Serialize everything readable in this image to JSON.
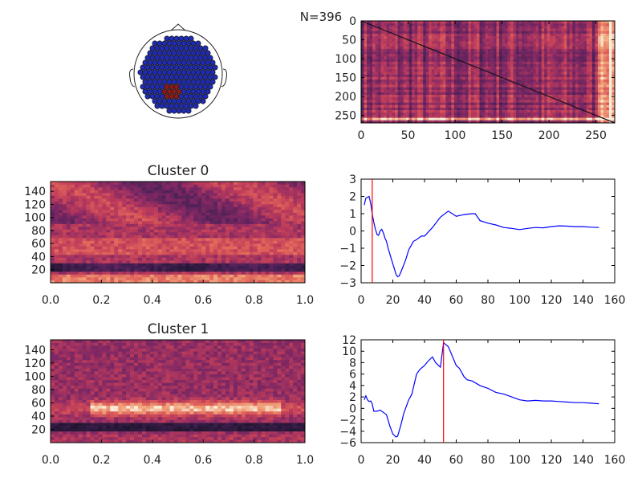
{
  "figure": {
    "count_label": "N=396"
  },
  "chart_data": [
    {
      "type": "heatmap",
      "panel": "topomap",
      "xlabel": "",
      "ylabel": "",
      "colors": {
        "sensor": "#1f2bb0",
        "highlight": "#8b1a1a"
      }
    },
    {
      "type": "heatmap",
      "panel": "similarity-matrix",
      "xlim": [
        0,
        270
      ],
      "ylim": [
        270,
        0
      ],
      "xticks": [
        "0",
        "50",
        "100",
        "150",
        "200",
        "250"
      ],
      "yticks": [
        "0",
        "50",
        "100",
        "150",
        "200",
        "250"
      ],
      "diagonal": true,
      "bright_columns": [
        250,
        268
      ],
      "bright_rows": [
        250,
        262
      ]
    },
    {
      "type": "heatmap",
      "panel": "cluster-0-spectrogram",
      "title": "Cluster 0",
      "xlim": [
        0.0,
        1.0
      ],
      "ylim": [
        0,
        155
      ],
      "xticks": [
        "0.0",
        "0.2",
        "0.4",
        "0.6",
        "0.8",
        "1.0"
      ],
      "yticks": [
        "20",
        "40",
        "60",
        "80",
        "100",
        "120",
        "140"
      ],
      "bands": [
        {
          "center": 5,
          "intensity": 0.85
        },
        {
          "center": 22,
          "intensity": 0.05
        },
        {
          "center": 55,
          "intensity": 0.7
        },
        {
          "center": 110,
          "intensity": 0.55
        }
      ]
    },
    {
      "type": "line",
      "panel": "cluster-0-profile",
      "xlim": [
        0,
        160
      ],
      "ylim": [
        -3,
        3
      ],
      "xticks": [
        "0",
        "20",
        "40",
        "60",
        "80",
        "100",
        "120",
        "140",
        "160"
      ],
      "yticks": [
        "3",
        "2",
        "1",
        "0",
        "−1",
        "−2",
        "−3"
      ],
      "series": [
        {
          "color": "#0000ff",
          "x": [
            2,
            3,
            5,
            6,
            7,
            8,
            9,
            10,
            11,
            12,
            13,
            14,
            15,
            16,
            17,
            18,
            19,
            20,
            21,
            22,
            23,
            24,
            25,
            28,
            30,
            33,
            35,
            38,
            40,
            45,
            50,
            55,
            60,
            65,
            70,
            72,
            75,
            80,
            85,
            90,
            95,
            100,
            105,
            110,
            115,
            120,
            125,
            130,
            135,
            140,
            145,
            150
          ],
          "y": [
            1.5,
            1.9,
            2.0,
            1.6,
            1.0,
            0.5,
            0.1,
            -0.2,
            -0.25,
            0.0,
            0.1,
            -0.1,
            -0.4,
            -0.6,
            -1.0,
            -1.3,
            -1.6,
            -1.9,
            -2.2,
            -2.5,
            -2.65,
            -2.6,
            -2.4,
            -1.7,
            -1.1,
            -0.6,
            -0.5,
            -0.3,
            -0.3,
            0.2,
            0.8,
            1.15,
            0.85,
            0.95,
            1.0,
            1.0,
            0.6,
            0.45,
            0.35,
            0.2,
            0.15,
            0.08,
            0.15,
            0.2,
            0.18,
            0.25,
            0.3,
            0.28,
            0.25,
            0.25,
            0.22,
            0.2
          ]
        }
      ],
      "marker_line": {
        "x": 7,
        "color": "#ff0000"
      }
    },
    {
      "type": "heatmap",
      "panel": "cluster-1-spectrogram",
      "title": "Cluster 1",
      "xlim": [
        0.0,
        1.0
      ],
      "ylim": [
        0,
        155
      ],
      "xticks": [
        "0.0",
        "0.2",
        "0.4",
        "0.6",
        "0.8",
        "1.0"
      ],
      "yticks": [
        "20",
        "40",
        "60",
        "80",
        "100",
        "120",
        "140"
      ],
      "bands": [
        {
          "center": 52,
          "intensity": 0.95
        },
        {
          "center": 25,
          "intensity": 0.05
        }
      ]
    },
    {
      "type": "line",
      "panel": "cluster-1-profile",
      "xlim": [
        0,
        160
      ],
      "ylim": [
        -6,
        12
      ],
      "xticks": [
        "0",
        "20",
        "40",
        "60",
        "80",
        "100",
        "120",
        "140",
        "160"
      ],
      "yticks": [
        "12",
        "10",
        "8",
        "6",
        "4",
        "2",
        "0",
        "−2",
        "−4",
        "−6"
      ],
      "series": [
        {
          "color": "#0000ff",
          "x": [
            2,
            3,
            4,
            5,
            6,
            7,
            8,
            10,
            12,
            14,
            16,
            18,
            20,
            22,
            23,
            25,
            27,
            30,
            32,
            35,
            37,
            40,
            42,
            45,
            47,
            50,
            52,
            55,
            57,
            60,
            62,
            65,
            67,
            70,
            75,
            80,
            85,
            90,
            95,
            100,
            105,
            110,
            115,
            120,
            125,
            130,
            135,
            140,
            145,
            150
          ],
          "y": [
            1.5,
            2.2,
            1.5,
            1.2,
            1.3,
            0.8,
            -0.5,
            -0.5,
            -0.3,
            -0.7,
            -1.1,
            -3.0,
            -4.5,
            -5.0,
            -4.9,
            -3.0,
            -0.8,
            1.5,
            2.5,
            6.0,
            6.8,
            7.5,
            8.2,
            9.0,
            8.0,
            7.2,
            11.5,
            10.8,
            9.5,
            7.5,
            7.0,
            5.5,
            5.0,
            4.8,
            4.0,
            3.5,
            2.8,
            2.5,
            2.0,
            1.5,
            1.3,
            1.4,
            1.3,
            1.3,
            1.2,
            1.1,
            1.0,
            1.0,
            0.9,
            0.8
          ]
        }
      ],
      "marker_line": {
        "x": 52,
        "color": "#ff0000"
      }
    }
  ]
}
